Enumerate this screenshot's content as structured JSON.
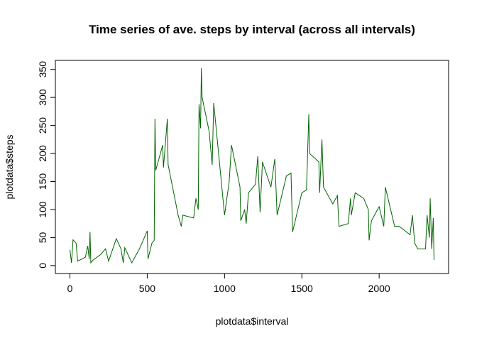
{
  "chart_data": {
    "type": "line",
    "title": "Time series of ave. steps by interval (across all intervals)",
    "x_label": "plotdata$interval",
    "y_label": "plotdata$steps",
    "x": [
      0,
      10,
      20,
      40,
      50,
      100,
      115,
      125,
      130,
      135,
      150,
      200,
      230,
      250,
      300,
      330,
      345,
      355,
      400,
      420,
      450,
      500,
      505,
      530,
      545,
      550,
      555,
      600,
      605,
      630,
      635,
      700,
      720,
      730,
      800,
      815,
      830,
      835,
      845,
      850,
      855,
      900,
      920,
      930,
      1000,
      1030,
      1045,
      1100,
      1105,
      1130,
      1140,
      1155,
      1200,
      1215,
      1230,
      1245,
      1300,
      1325,
      1340,
      1400,
      1430,
      1440,
      1500,
      1530,
      1545,
      1550,
      1610,
      1615,
      1630,
      1640,
      1700,
      1730,
      1740,
      1800,
      1815,
      1820,
      1845,
      1900,
      1930,
      1935,
      1950,
      2000,
      2030,
      2040,
      2100,
      2130,
      2200,
      2215,
      2230,
      2250,
      2300,
      2310,
      2325,
      2330,
      2340,
      2350,
      2355
    ],
    "series": [
      {
        "name": "steps",
        "color": "#006400",
        "values": [
          28,
          5,
          46,
          40,
          8,
          15,
          35,
          12,
          60,
          5,
          10,
          20,
          30,
          8,
          48,
          30,
          5,
          32,
          5,
          15,
          30,
          62,
          12,
          40,
          45,
          262,
          170,
          215,
          175,
          262,
          180,
          90,
          70,
          90,
          85,
          120,
          100,
          288,
          245,
          352,
          300,
          240,
          180,
          290,
          90,
          150,
          215,
          140,
          80,
          100,
          75,
          130,
          145,
          195,
          95,
          185,
          140,
          190,
          90,
          160,
          165,
          60,
          130,
          135,
          270,
          200,
          185,
          130,
          225,
          140,
          110,
          125,
          70,
          75,
          120,
          90,
          130,
          120,
          100,
          45,
          80,
          105,
          70,
          140,
          70,
          70,
          55,
          90,
          40,
          30,
          30,
          90,
          50,
          120,
          30,
          85,
          10
        ]
      }
    ],
    "xlim": [
      -94.2,
      2449.2
    ],
    "ylim": [
      -14.08,
      366.08
    ],
    "xticks": [
      0,
      500,
      1000,
      1500,
      2000
    ],
    "yticks": [
      0,
      50,
      100,
      150,
      200,
      250,
      300,
      350
    ]
  }
}
